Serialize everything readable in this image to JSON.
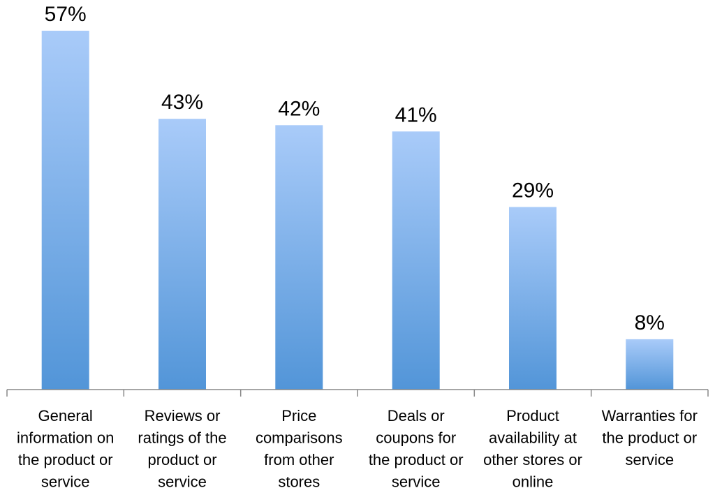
{
  "chart_data": {
    "type": "bar",
    "categories": [
      [
        "General",
        "information on",
        "the product or",
        "service"
      ],
      [
        "Reviews or",
        "ratings of the",
        "product or",
        "service"
      ],
      [
        "Price",
        "comparisons",
        "from other",
        "stores"
      ],
      [
        "Deals or",
        "coupons for",
        "the product or",
        "service"
      ],
      [
        "Product",
        "availability at",
        "other stores or",
        "online"
      ],
      [
        "Warranties for",
        "the product or",
        "service"
      ]
    ],
    "values": [
      57,
      43,
      42,
      41,
      29,
      8
    ],
    "data_labels": [
      "57%",
      "43%",
      "42%",
      "41%",
      "29%",
      "8%"
    ],
    "ylim": [
      0,
      57
    ],
    "grid": false,
    "legend": "none",
    "colors": {
      "bar_top": "#a9cbf9",
      "bar_bottom": "#5295d8",
      "axis": "#888888"
    }
  }
}
